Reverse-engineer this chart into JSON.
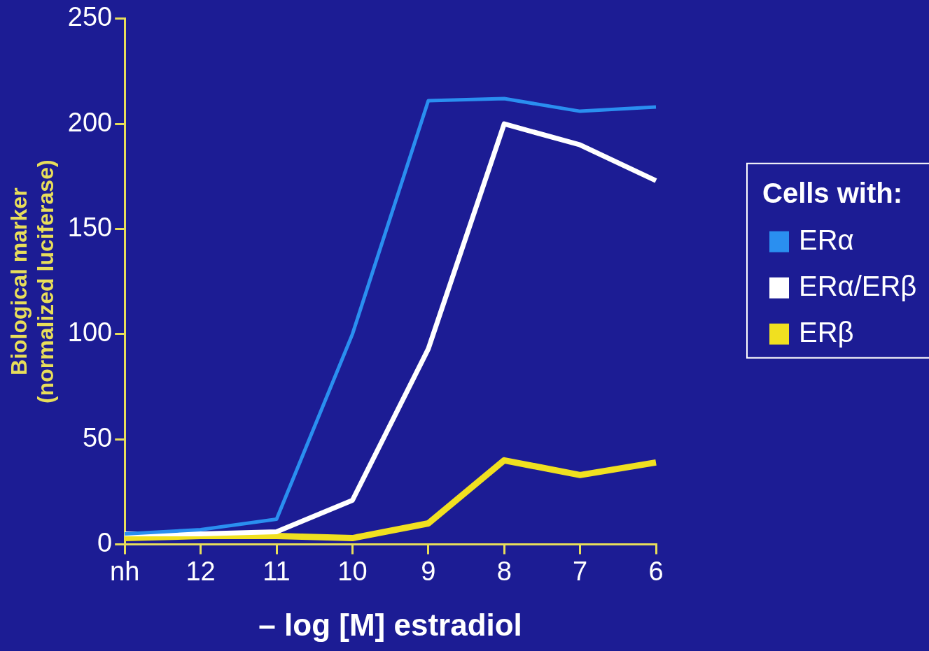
{
  "chart_data": {
    "type": "line",
    "xlabel": "– log [M] estradiol",
    "ylabel": "Biological marker\n(normalized luciferase)",
    "legend_title": "Cells with:",
    "legend": "right",
    "grid": false,
    "marker": "none",
    "line_style": "solid",
    "categories": [
      "nh",
      "12",
      "11",
      "10",
      "9",
      "8",
      "7",
      "6"
    ],
    "ylim": [
      0,
      250
    ],
    "yticks": [
      0,
      50,
      100,
      150,
      200,
      250
    ],
    "series": [
      {
        "name": "ERα",
        "color": "#2a8ff0",
        "values": [
          5,
          7,
          12,
          100,
          211,
          212,
          206,
          208
        ]
      },
      {
        "name": "ERα/ERβ",
        "color": "#ffffff",
        "values": [
          5,
          5,
          6,
          21,
          93,
          200,
          190,
          173
        ]
      },
      {
        "name": "ERβ",
        "color": "#f0e020",
        "values": [
          3,
          4,
          4,
          3,
          10,
          40,
          33,
          39
        ]
      }
    ]
  }
}
